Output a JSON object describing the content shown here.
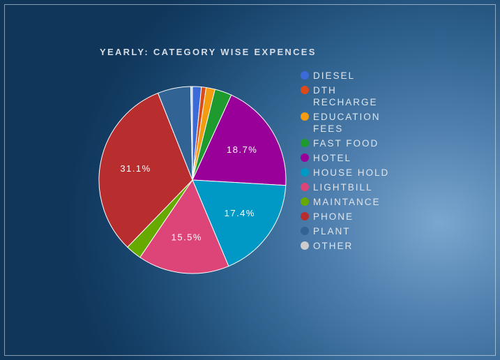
{
  "chart_data": {
    "type": "pie",
    "title": "YEARLY: CATEGORY WISE EXPENCES",
    "legend_position": "right",
    "slices": [
      {
        "name": "DIESEL",
        "value": 1.5,
        "color": "#3a6bd8",
        "label": ""
      },
      {
        "name": "DTH RECHARGE",
        "value": 0.8,
        "color": "#dc4a17",
        "label": ""
      },
      {
        "name": "EDUCATION FEES",
        "value": 1.5,
        "color": "#f39c12",
        "label": ""
      },
      {
        "name": "FAST FOOD",
        "value": 2.9,
        "color": "#1e9a2e",
        "label": ""
      },
      {
        "name": "HOTEL",
        "value": 18.7,
        "color": "#990099",
        "label": "18.7%"
      },
      {
        "name": "HOUSE HOLD",
        "value": 17.4,
        "color": "#0099c6",
        "label": "17.4%"
      },
      {
        "name": "LIGHTBILL",
        "value": 15.5,
        "color": "#dd4477",
        "label": "15.5%"
      },
      {
        "name": "MAINTANCE",
        "value": 2.7,
        "color": "#66aa00",
        "label": ""
      },
      {
        "name": "PHONE",
        "value": 31.1,
        "color": "#b82e2e",
        "label": "31.1%"
      },
      {
        "name": "PLANT",
        "value": 5.6,
        "color": "#316395",
        "label": ""
      },
      {
        "name": "OTHER",
        "value": 0.3,
        "color": "#cccccc",
        "label": ""
      }
    ]
  }
}
